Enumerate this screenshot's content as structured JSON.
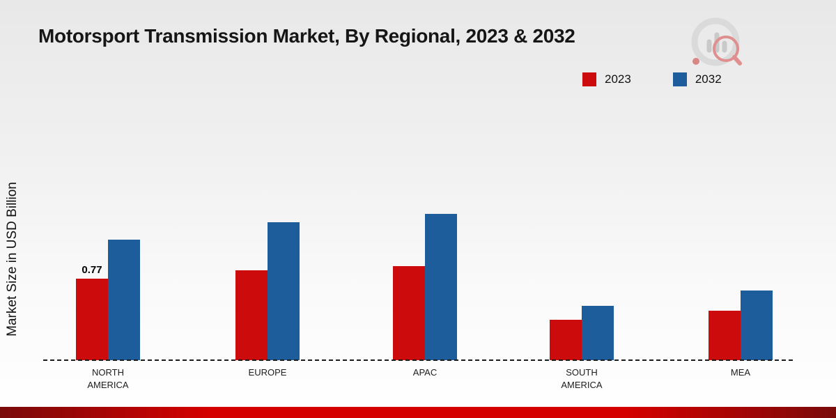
{
  "chart_data": {
    "type": "bar",
    "title": "Motorsport Transmission Market, By Regional, 2023 & 2032",
    "ylabel": "Market Size in USD Billion",
    "categories": [
      "NORTH\nAMERICA",
      "EUROPE",
      "APAC",
      "SOUTH\nAMERICA",
      "MEA"
    ],
    "series": [
      {
        "name": "2023",
        "color": "#cc0c0c",
        "values": [
          0.77,
          0.85,
          0.89,
          0.38,
          0.47
        ]
      },
      {
        "name": "2032",
        "color": "#1d5d9b",
        "values": [
          1.14,
          1.3,
          1.38,
          0.51,
          0.66
        ]
      }
    ],
    "data_labels": [
      {
        "category_index": 0,
        "series_index": 0,
        "text": "0.77"
      }
    ],
    "baseline_style": "dashed",
    "legend_position": "top-right",
    "grid": false
  },
  "brand": {
    "footer_gradient": [
      "#7a0a0a",
      "#d40000"
    ],
    "logo_name": "market-research-chart-logo"
  }
}
